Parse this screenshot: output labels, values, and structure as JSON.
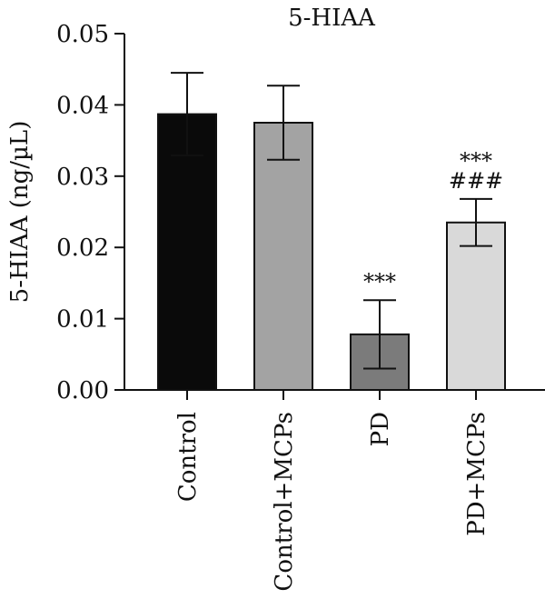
{
  "chart_data": {
    "type": "bar",
    "title": "5-HIAA",
    "ylabel": "5-HIAA (ng/µL)",
    "xlabel": "",
    "ylim": [
      0,
      0.05
    ],
    "yticks": [
      "0.00",
      "0.01",
      "0.02",
      "0.03",
      "0.04",
      "0.05"
    ],
    "categories": [
      "Control",
      "Control+MCPs",
      "PD",
      "PD+MCPs"
    ],
    "values": [
      0.0387,
      0.0375,
      0.0078,
      0.0235
    ],
    "errors": [
      0.0058,
      0.0052,
      0.0048,
      0.0033
    ],
    "annotations": [
      [],
      [],
      [
        "***"
      ],
      [
        "***",
        "###"
      ]
    ],
    "colors": [
      "#0a0a0a",
      "#a3a3a3",
      "#7b7b7b",
      "#d9d9d9"
    ],
    "grid": false,
    "legend": "none"
  }
}
